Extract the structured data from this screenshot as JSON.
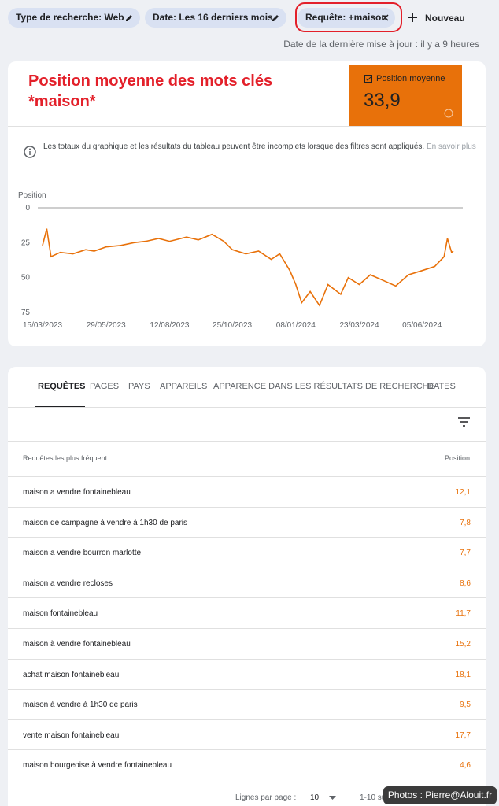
{
  "filters": [
    "Type de recherche: Web",
    "Date: Les 16 derniers mois",
    "Requête: +maison"
  ],
  "new_button": "Nouveau",
  "last_update": "Date de la dernière mise à jour : il y a 9 heures",
  "annotation": "Position moyenne des mots clés *maison*",
  "metric": {
    "label": "Position moyenne",
    "value": "33,9"
  },
  "notice": {
    "text": "Les totaux du graphique et les résultats du tableau peuvent être incomplets lorsque des filtres sont appliqués.",
    "link": "En savoir plus"
  },
  "chart_data": {
    "type": "line",
    "y_label": "Position",
    "color": "#e8710a",
    "y_reversed": true,
    "grid": false,
    "x": [
      "15/03/2023",
      "20/03/2023",
      "25/03/2023",
      "05/04/2023",
      "20/04/2023",
      "05/05/2023",
      "15/05/2023",
      "29/05/2023",
      "15/06/2023",
      "01/07/2023",
      "15/07/2023",
      "30/07/2023",
      "12/08/2023",
      "01/09/2023",
      "15/09/2023",
      "01/10/2023",
      "15/10/2023",
      "25/10/2023",
      "10/11/2023",
      "25/11/2023",
      "10/12/2023",
      "20/12/2023",
      "01/01/2024",
      "08/01/2024",
      "15/01/2024",
      "25/01/2024",
      "05/02/2024",
      "15/02/2024",
      "01/03/2024",
      "10/03/2024",
      "23/03/2024",
      "05/04/2024",
      "20/04/2024",
      "05/05/2024",
      "20/05/2024",
      "05/06/2024",
      "20/06/2024",
      "01/07/2024",
      "05/07/2024",
      "10/07/2024",
      "12/07/2024"
    ],
    "values": [
      27,
      15,
      35,
      32,
      33,
      30,
      31,
      28,
      27,
      25,
      24,
      22,
      24,
      21,
      23,
      19,
      24,
      30,
      33,
      31,
      37,
      33,
      45,
      55,
      68,
      60,
      70,
      55,
      62,
      50,
      55,
      48,
      52,
      56,
      48,
      45,
      42,
      35,
      22,
      32,
      31
    ],
    "xlim": [
      "15/03/2023",
      "12/07/2024"
    ],
    "xticks": [
      "15/03/2023",
      "29/05/2023",
      "12/08/2023",
      "25/10/2023",
      "08/01/2024",
      "23/03/2024",
      "05/06/2024"
    ],
    "ylim": [
      0,
      75
    ],
    "yticks": [
      0,
      25,
      50,
      75
    ]
  },
  "tabs": [
    "REQUÊTES",
    "PAGES",
    "PAYS",
    "APPAREILS",
    "APPARENCE DANS LES RÉSULTATS DE RECHERCHE",
    "DATES"
  ],
  "table": {
    "header": [
      "Requêtes les plus fréquent...",
      "Position"
    ],
    "rows": [
      [
        "maison a vendre fontainebleau",
        "12,1"
      ],
      [
        "maison de campagne à vendre à 1h30 de paris",
        "7,8"
      ],
      [
        "maison a vendre bourron marlotte",
        "7,7"
      ],
      [
        "maison a vendre recloses",
        "8,6"
      ],
      [
        "maison fontainebleau",
        "11,7"
      ],
      [
        "maison à vendre fontainebleau",
        "15,2"
      ],
      [
        "achat maison fontainebleau",
        "18,1"
      ],
      [
        "maison à vendre à 1h30 de paris",
        "9,5"
      ],
      [
        "vente maison fontainebleau",
        "17,7"
      ],
      [
        "maison bourgeoise à vendre fontainebleau",
        "4,6"
      ]
    ]
  },
  "footer": {
    "rows_label": "Lignes par page :",
    "rows_value": "10",
    "range": "1-10 sur"
  },
  "watermark": "Photos : Pierre@Alouit.fr"
}
